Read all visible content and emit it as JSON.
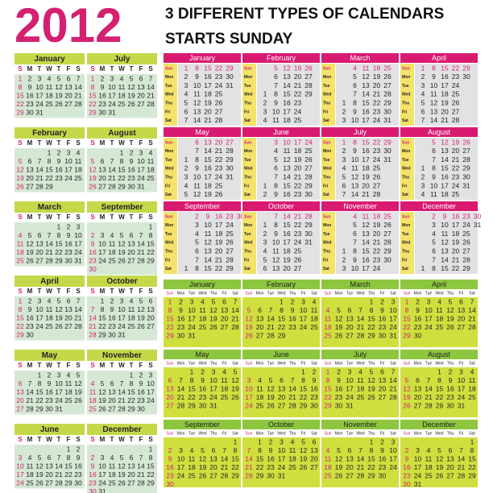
{
  "header": {
    "year": "2012",
    "title_lines": [
      "3 DIFFERENT TYPES OF CALENDARS",
      "STARTS SUNDAY"
    ]
  },
  "days_short": [
    "S",
    "M",
    "T",
    "W",
    "T",
    "F",
    "S"
  ],
  "days_long": [
    "Sun",
    "Mon",
    "Tue",
    "Wed",
    "Thu",
    "Fri",
    "Sat"
  ],
  "months": [
    {
      "name": "January",
      "weeks": [
        [
          1,
          2,
          3,
          4,
          5,
          6,
          7
        ],
        [
          8,
          9,
          10,
          11,
          12,
          13,
          14
        ],
        [
          15,
          16,
          17,
          18,
          19,
          20,
          21
        ],
        [
          22,
          23,
          24,
          25,
          26,
          27,
          28
        ],
        [
          29,
          30,
          31,
          null,
          null,
          null,
          null
        ]
      ]
    },
    {
      "name": "February",
      "weeks": [
        [
          null,
          null,
          null,
          1,
          2,
          3,
          4
        ],
        [
          5,
          6,
          7,
          8,
          9,
          10,
          11
        ],
        [
          12,
          13,
          14,
          15,
          16,
          17,
          18
        ],
        [
          19,
          20,
          21,
          22,
          23,
          24,
          25
        ],
        [
          26,
          27,
          28,
          29,
          null,
          null,
          null
        ]
      ]
    },
    {
      "name": "March",
      "weeks": [
        [
          null,
          null,
          null,
          null,
          1,
          2,
          3
        ],
        [
          4,
          5,
          6,
          7,
          8,
          9,
          10
        ],
        [
          11,
          12,
          13,
          14,
          15,
          16,
          17
        ],
        [
          18,
          19,
          20,
          21,
          22,
          23,
          24
        ],
        [
          25,
          26,
          27,
          28,
          29,
          30,
          31
        ]
      ]
    },
    {
      "name": "April",
      "weeks": [
        [
          1,
          2,
          3,
          4,
          5,
          6,
          7
        ],
        [
          8,
          9,
          10,
          11,
          12,
          13,
          14
        ],
        [
          15,
          16,
          17,
          18,
          19,
          20,
          21
        ],
        [
          22,
          23,
          24,
          25,
          26,
          27,
          28
        ],
        [
          29,
          30,
          null,
          null,
          null,
          null,
          null
        ]
      ]
    },
    {
      "name": "May",
      "weeks": [
        [
          null,
          null,
          1,
          2,
          3,
          4,
          5
        ],
        [
          6,
          7,
          8,
          9,
          10,
          11,
          12
        ],
        [
          13,
          14,
          15,
          16,
          17,
          18,
          19
        ],
        [
          20,
          21,
          22,
          23,
          24,
          25,
          26
        ],
        [
          27,
          28,
          29,
          30,
          31,
          null,
          null
        ]
      ]
    },
    {
      "name": "June",
      "weeks": [
        [
          null,
          null,
          null,
          null,
          null,
          1,
          2
        ],
        [
          3,
          4,
          5,
          6,
          7,
          8,
          9
        ],
        [
          10,
          11,
          12,
          13,
          14,
          15,
          16
        ],
        [
          17,
          18,
          19,
          20,
          21,
          22,
          23
        ],
        [
          24,
          25,
          26,
          27,
          28,
          29,
          30
        ]
      ]
    },
    {
      "name": "July",
      "weeks": [
        [
          1,
          2,
          3,
          4,
          5,
          6,
          7
        ],
        [
          8,
          9,
          10,
          11,
          12,
          13,
          14
        ],
        [
          15,
          16,
          17,
          18,
          19,
          20,
          21
        ],
        [
          22,
          23,
          24,
          25,
          26,
          27,
          28
        ],
        [
          29,
          30,
          31,
          null,
          null,
          null,
          null
        ]
      ]
    },
    {
      "name": "August",
      "weeks": [
        [
          null,
          null,
          null,
          1,
          2,
          3,
          4
        ],
        [
          5,
          6,
          7,
          8,
          9,
          10,
          11
        ],
        [
          12,
          13,
          14,
          15,
          16,
          17,
          18
        ],
        [
          19,
          20,
          21,
          22,
          23,
          24,
          25
        ],
        [
          26,
          27,
          28,
          29,
          30,
          31,
          null
        ]
      ]
    },
    {
      "name": "September",
      "weeks": [
        [
          null,
          null,
          null,
          null,
          null,
          null,
          1
        ],
        [
          2,
          3,
          4,
          5,
          6,
          7,
          8
        ],
        [
          9,
          10,
          11,
          12,
          13,
          14,
          15
        ],
        [
          16,
          17,
          18,
          19,
          20,
          21,
          22
        ],
        [
          23,
          24,
          25,
          26,
          27,
          28,
          29
        ],
        [
          30,
          null,
          null,
          null,
          null,
          null,
          null
        ]
      ]
    },
    {
      "name": "October",
      "weeks": [
        [
          null,
          1,
          2,
          3,
          4,
          5,
          6
        ],
        [
          7,
          8,
          9,
          10,
          11,
          12,
          13
        ],
        [
          14,
          15,
          16,
          17,
          18,
          19,
          20
        ],
        [
          21,
          22,
          23,
          24,
          25,
          26,
          27
        ],
        [
          28,
          29,
          30,
          31,
          null,
          null,
          null
        ]
      ]
    },
    {
      "name": "November",
      "weeks": [
        [
          null,
          null,
          null,
          null,
          1,
          2,
          3
        ],
        [
          4,
          5,
          6,
          7,
          8,
          9,
          10
        ],
        [
          11,
          12,
          13,
          14,
          15,
          16,
          17
        ],
        [
          18,
          19,
          20,
          21,
          22,
          23,
          24
        ],
        [
          25,
          26,
          27,
          28,
          29,
          30,
          null
        ]
      ]
    },
    {
      "name": "December",
      "weeks": [
        [
          null,
          null,
          null,
          null,
          null,
          null,
          1
        ],
        [
          2,
          3,
          4,
          5,
          6,
          7,
          8
        ],
        [
          9,
          10,
          11,
          12,
          13,
          14,
          15
        ],
        [
          16,
          17,
          18,
          19,
          20,
          21,
          22
        ],
        [
          23,
          24,
          25,
          26,
          27,
          28,
          29
        ],
        [
          30,
          31,
          null,
          null,
          null,
          null,
          null
        ]
      ]
    }
  ]
}
